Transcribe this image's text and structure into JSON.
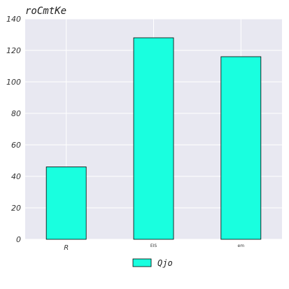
{
  "chart_data": {
    "type": "bar",
    "title": "roCmtKe",
    "categories": [
      "R",
      "EIS",
      "em"
    ],
    "series": [
      {
        "name": "Qjo",
        "values": [
          46,
          128,
          116
        ]
      }
    ],
    "ylim": [
      0,
      140
    ],
    "yticks": [
      "0",
      "20",
      "40",
      "60",
      "80",
      "100",
      "120",
      "140"
    ],
    "grid": true,
    "legend": "bottom-center",
    "colors": {
      "bar": "#19ffdf",
      "bar_edge": "#000000",
      "plot_bg": "#e8e8f1",
      "grid": "#ffffff"
    }
  }
}
